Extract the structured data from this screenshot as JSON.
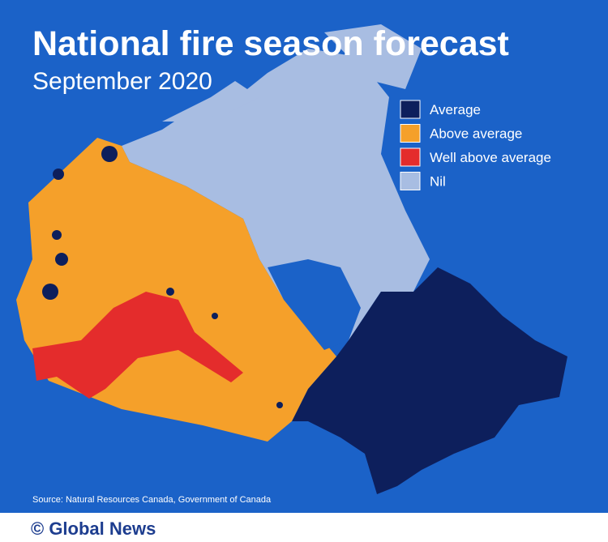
{
  "header": {
    "title": "National fire season forecast",
    "subtitle": "September 2020"
  },
  "legend": [
    {
      "label": "Average",
      "color": "#0d1f5c"
    },
    {
      "label": "Above average",
      "color": "#f5a02a"
    },
    {
      "label": "Well above average",
      "color": "#e42c2c"
    },
    {
      "label": "Nil",
      "color": "#a8bde2"
    }
  ],
  "source": "Source: Natural Resources Canada, Government of Canada",
  "footer": {
    "brand": "© Global News"
  }
}
